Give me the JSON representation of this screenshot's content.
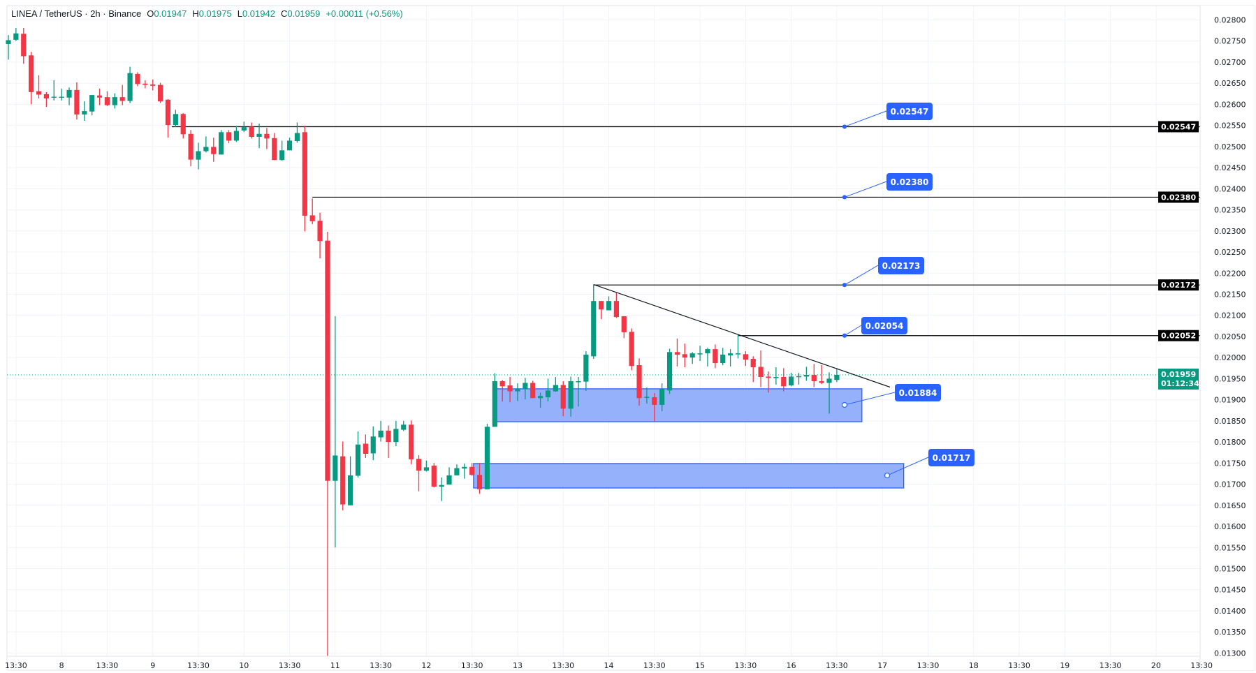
{
  "header": {
    "symbol": "LINEA / TetherUS · 2h · Binance",
    "o_label": "O",
    "o_value": "0.01947",
    "h_label": "H",
    "h_value": "0.01975",
    "l_label": "L",
    "l_value": "0.01942",
    "c_label": "C",
    "c_value": "0.01959",
    "change": "+0.00011 (+0.56%)"
  },
  "colors": {
    "up": "#089981",
    "down": "#f23645",
    "accent": "#2962ff",
    "zone": "#8fadfb",
    "line": "#131722",
    "grid": "#f0f3fa"
  },
  "chart_data": {
    "type": "candlestick",
    "title": "LINEA / TetherUS · 2h · Binance",
    "ylim": [
      0.013,
      0.028
    ],
    "yticks": [
      "0.02800",
      "0.02750",
      "0.02700",
      "0.02650",
      "0.02600",
      "0.02550",
      "0.02500",
      "0.02450",
      "0.02400",
      "0.02350",
      "0.02300",
      "0.02250",
      "0.02200",
      "0.02150",
      "0.02100",
      "0.02050",
      "0.02000",
      "0.01950",
      "0.01900",
      "0.01850",
      "0.01800",
      "0.01750",
      "0.01700",
      "0.01650",
      "0.01600",
      "0.01550",
      "0.01500",
      "0.01450",
      "0.01400",
      "0.01350",
      "0.01300"
    ],
    "xticks": [
      "13:30",
      "8",
      "13:30",
      "9",
      "13:30",
      "10",
      "13:30",
      "11",
      "13:30",
      "12",
      "13:30",
      "13",
      "13:30",
      "14",
      "13:30",
      "15",
      "13:30",
      "16",
      "13:30",
      "17",
      "13:30",
      "18",
      "13:30",
      "19",
      "13:30",
      "20",
      "13:30"
    ],
    "xtick_start_index": 1,
    "xtick_step": 6,
    "ohlc_fields": [
      "open",
      "high",
      "low",
      "close"
    ],
    "candles": [
      [
        0.02743,
        0.02764,
        0.02706,
        0.02752
      ],
      [
        0.02753,
        0.02781,
        0.0275,
        0.02768
      ],
      [
        0.02767,
        0.02781,
        0.02696,
        0.02714
      ],
      [
        0.02716,
        0.02724,
        0.026,
        0.02629
      ],
      [
        0.02631,
        0.02669,
        0.02614,
        0.02623
      ],
      [
        0.02624,
        0.02629,
        0.02594,
        0.02614
      ],
      [
        0.02617,
        0.02657,
        0.02609,
        0.02618
      ],
      [
        0.02617,
        0.02637,
        0.02609,
        0.02618
      ],
      [
        0.02616,
        0.0264,
        0.02598,
        0.02634
      ],
      [
        0.02634,
        0.02652,
        0.02564,
        0.02576
      ],
      [
        0.02576,
        0.02607,
        0.02561,
        0.02584
      ],
      [
        0.02583,
        0.02622,
        0.02574,
        0.02622
      ],
      [
        0.02621,
        0.02637,
        0.02598,
        0.02616
      ],
      [
        0.02617,
        0.02631,
        0.02596,
        0.02598
      ],
      [
        0.02598,
        0.02626,
        0.0259,
        0.02617
      ],
      [
        0.02617,
        0.02646,
        0.02598,
        0.02608
      ],
      [
        0.02608,
        0.02689,
        0.02603,
        0.02674
      ],
      [
        0.02672,
        0.02676,
        0.02643,
        0.02648
      ],
      [
        0.02649,
        0.02657,
        0.02638,
        0.02646
      ],
      [
        0.02647,
        0.02659,
        0.02633,
        0.02644
      ],
      [
        0.02646,
        0.02651,
        0.02603,
        0.02607
      ],
      [
        0.02611,
        0.02612,
        0.02521,
        0.02551
      ],
      [
        0.02551,
        0.02587,
        0.02546,
        0.02577
      ],
      [
        0.02577,
        0.02579,
        0.02519,
        0.02529
      ],
      [
        0.0253,
        0.02539,
        0.02453,
        0.02469
      ],
      [
        0.02469,
        0.02509,
        0.02446,
        0.02489
      ],
      [
        0.02489,
        0.02524,
        0.02486,
        0.02499
      ],
      [
        0.02499,
        0.02521,
        0.02464,
        0.02482
      ],
      [
        0.02481,
        0.02539,
        0.02481,
        0.02534
      ],
      [
        0.02534,
        0.02539,
        0.02508,
        0.02514
      ],
      [
        0.02514,
        0.02549,
        0.02511,
        0.02537
      ],
      [
        0.02538,
        0.02559,
        0.02534,
        0.02546
      ],
      [
        0.02547,
        0.02557,
        0.02519,
        0.02523
      ],
      [
        0.02523,
        0.02554,
        0.02496,
        0.0253
      ],
      [
        0.0253,
        0.02544,
        0.02494,
        0.02519
      ],
      [
        0.0252,
        0.02532,
        0.02468,
        0.02468
      ],
      [
        0.02468,
        0.02514,
        0.02466,
        0.02491
      ],
      [
        0.02491,
        0.02521,
        0.02491,
        0.02514
      ],
      [
        0.02513,
        0.02557,
        0.02509,
        0.02532
      ],
      [
        0.02534,
        0.02549,
        0.02299,
        0.02336
      ],
      [
        0.02337,
        0.02377,
        0.02316,
        0.02323
      ],
      [
        0.02324,
        0.02343,
        0.02235,
        0.02276
      ],
      [
        0.02277,
        0.02298,
        0.0129,
        0.01708
      ],
      [
        0.01708,
        0.02098,
        0.0155,
        0.01768
      ],
      [
        0.01766,
        0.01801,
        0.01638,
        0.01652
      ],
      [
        0.0165,
        0.01766,
        0.0165,
        0.01721
      ],
      [
        0.0172,
        0.01825,
        0.01716,
        0.01794
      ],
      [
        0.01796,
        0.01818,
        0.01762,
        0.01772
      ],
      [
        0.01773,
        0.01837,
        0.01757,
        0.01813
      ],
      [
        0.01811,
        0.0185,
        0.01801,
        0.01827
      ],
      [
        0.01827,
        0.01839,
        0.01762,
        0.018
      ],
      [
        0.018,
        0.0185,
        0.0179,
        0.01831
      ],
      [
        0.01829,
        0.0185,
        0.01826,
        0.01841
      ],
      [
        0.01841,
        0.01851,
        0.01747,
        0.01759
      ],
      [
        0.0176,
        0.01769,
        0.01683,
        0.01732
      ],
      [
        0.01732,
        0.01756,
        0.0173,
        0.0174
      ],
      [
        0.01744,
        0.0175,
        0.01692,
        0.01694
      ],
      [
        0.01694,
        0.01716,
        0.0166,
        0.01698
      ],
      [
        0.01699,
        0.0174,
        0.01699,
        0.01721
      ],
      [
        0.01721,
        0.01747,
        0.01721,
        0.01738
      ],
      [
        0.01737,
        0.01749,
        0.01713,
        0.01741
      ],
      [
        0.01741,
        0.0175,
        0.0172,
        0.01722
      ],
      [
        0.01722,
        0.0175,
        0.01677,
        0.01688
      ],
      [
        0.01688,
        0.01843,
        0.01688,
        0.01836
      ],
      [
        0.01836,
        0.01963,
        0.01836,
        0.01944
      ],
      [
        0.01944,
        0.01947,
        0.01896,
        0.01932
      ],
      [
        0.01934,
        0.01954,
        0.01894,
        0.0192
      ],
      [
        0.0192,
        0.01939,
        0.01897,
        0.01926
      ],
      [
        0.01925,
        0.01952,
        0.01901,
        0.0194
      ],
      [
        0.0194,
        0.01945,
        0.01904,
        0.01904
      ],
      [
        0.01904,
        0.01917,
        0.01881,
        0.01909
      ],
      [
        0.01906,
        0.0195,
        0.01896,
        0.01922
      ],
      [
        0.0192,
        0.01954,
        0.01919,
        0.01935
      ],
      [
        0.01935,
        0.01944,
        0.01861,
        0.01879
      ],
      [
        0.01879,
        0.01955,
        0.0186,
        0.01944
      ],
      [
        0.01943,
        0.01954,
        0.01884,
        0.01944
      ],
      [
        0.01943,
        0.02015,
        0.01921,
        0.02007
      ],
      [
        0.02003,
        0.02173,
        0.01997,
        0.02134
      ],
      [
        0.02134,
        0.02134,
        0.02091,
        0.02114
      ],
      [
        0.02112,
        0.02145,
        0.02112,
        0.02134
      ],
      [
        0.02134,
        0.02155,
        0.02094,
        0.02096
      ],
      [
        0.02098,
        0.02098,
        0.02046,
        0.0206
      ],
      [
        0.02061,
        0.02069,
        0.0197,
        0.0198
      ],
      [
        0.01982,
        0.01998,
        0.01886,
        0.01904
      ],
      [
        0.01906,
        0.01929,
        0.01891,
        0.01907
      ],
      [
        0.01906,
        0.01916,
        0.01849,
        0.01888
      ],
      [
        0.01888,
        0.01939,
        0.01873,
        0.01926
      ],
      [
        0.01922,
        0.02021,
        0.01914,
        0.02013
      ],
      [
        0.02013,
        0.02045,
        0.01979,
        0.02007
      ],
      [
        0.02008,
        0.02033,
        0.01977,
        0.02
      ],
      [
        0.02,
        0.02013,
        0.01985,
        0.0201
      ],
      [
        0.02009,
        0.02028,
        0.01992,
        0.0201
      ],
      [
        0.0201,
        0.02023,
        0.01979,
        0.0202
      ],
      [
        0.0202,
        0.02031,
        0.01975,
        0.01987
      ],
      [
        0.01987,
        0.02023,
        0.01982,
        0.02007
      ],
      [
        0.02005,
        0.0202,
        0.01979,
        0.0201
      ],
      [
        0.02009,
        0.02054,
        0.01998,
        0.0201
      ],
      [
        0.02008,
        0.02015,
        0.0198,
        0.01995
      ],
      [
        0.01997,
        0.02003,
        0.01942,
        0.01977
      ],
      [
        0.01978,
        0.02017,
        0.0193,
        0.01954
      ],
      [
        0.01955,
        0.01967,
        0.01917,
        0.01952
      ],
      [
        0.01953,
        0.01977,
        0.01936,
        0.01954
      ],
      [
        0.01954,
        0.01975,
        0.0192,
        0.01932
      ],
      [
        0.01934,
        0.01964,
        0.01932,
        0.01955
      ],
      [
        0.01955,
        0.01964,
        0.01936,
        0.01956
      ],
      [
        0.01955,
        0.01978,
        0.01945,
        0.01959
      ],
      [
        0.01959,
        0.01985,
        0.0193,
        0.01944
      ],
      [
        0.01944,
        0.01982,
        0.01937,
        0.0194
      ],
      [
        0.0194,
        0.01965,
        0.01867,
        0.0195
      ],
      [
        0.01947,
        0.01975,
        0.01942,
        0.01959
      ]
    ],
    "levels": [
      {
        "price": 0.02547,
        "axis_label": "0.02547",
        "callout": "0.02547",
        "from_index": 21.5
      },
      {
        "price": 0.0238,
        "axis_label": "0.02380",
        "callout": "0.02380",
        "from_index": 40
      },
      {
        "price": 0.02172,
        "axis_label": "0.02172",
        "callout": "0.02173",
        "from_index": 77
      },
      {
        "price": 0.02052,
        "axis_label": "0.02052",
        "callout": "0.02054",
        "from_index": 96
      }
    ],
    "trendline": {
      "from": {
        "index": 77,
        "price": 0.02173
      },
      "to": {
        "index": 116,
        "price": 0.0193
      }
    },
    "zones": [
      {
        "top": 0.01926,
        "bottom": 0.01848,
        "from_index": 64,
        "to_index": 112.3,
        "callout": "0.01884"
      },
      {
        "top": 0.01749,
        "bottom": 0.01691,
        "from_index": 61.2,
        "to_index": 117.8,
        "callout": "0.01717"
      }
    ],
    "last_price": {
      "value": "0.01959",
      "price": 0.01959,
      "countdown": "01:12:34"
    }
  }
}
